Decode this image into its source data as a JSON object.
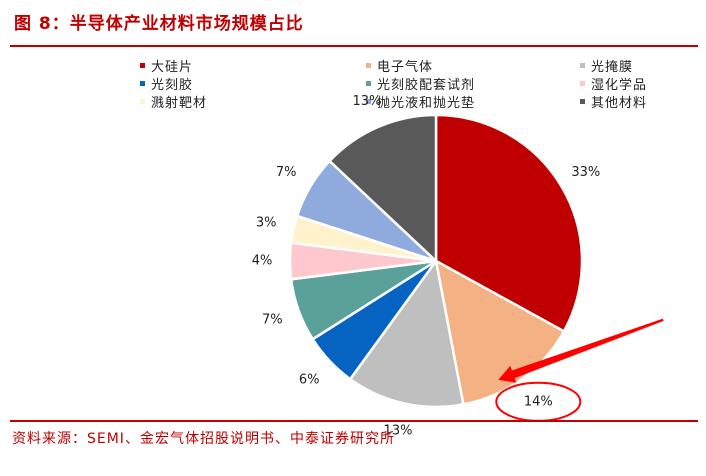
{
  "header": {
    "title": "图 8：半导体产业材料市场规模占比"
  },
  "footer": {
    "source": "资料来源：SEMI、金宏气体招股说明书、中泰证券研究所"
  },
  "chart_data": {
    "type": "pie",
    "title": "",
    "legend_position": "top",
    "slices": [
      {
        "name": "大硅片",
        "value": 33,
        "label": "33%",
        "color": "#c00000"
      },
      {
        "name": "电子气体",
        "value": 14,
        "label": "14%",
        "color": "#f4b183"
      },
      {
        "name": "光掩膜",
        "value": 13,
        "label": "13%",
        "color": "#bfbfbf"
      },
      {
        "name": "光刻胶",
        "value": 6,
        "label": "6%",
        "color": "#0563c1"
      },
      {
        "name": "光刻胶配套试剂",
        "value": 7,
        "label": "7%",
        "color": "#5aa19a"
      },
      {
        "name": "湿化学品",
        "value": 4,
        "label": "4%",
        "color": "#ffc7ce"
      },
      {
        "name": "溅射靶材",
        "value": 3,
        "label": "3%",
        "color": "#fff2cc"
      },
      {
        "name": "抛光液和抛光垫",
        "value": 7,
        "label": "7%",
        "color": "#8faadc"
      },
      {
        "name": "其他材料",
        "value": 13,
        "label": "13%",
        "color": "#595959"
      }
    ],
    "legend_order": [
      "大硅片",
      "电子气体",
      "光掩膜",
      "光刻胶",
      "光刻胶配套试剂",
      "湿化学品",
      "溅射靶材",
      "抛光液和抛光垫",
      "其他材料"
    ],
    "annotation": {
      "highlight": "电子气体",
      "arrow_color": "#ff0000"
    }
  }
}
